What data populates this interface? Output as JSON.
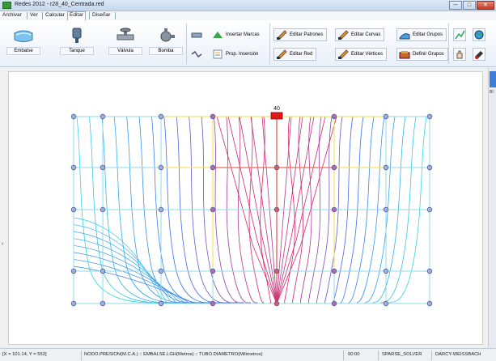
{
  "window": {
    "title": "Redes 2012  -  r28_40_Centrada.red",
    "minimize": "─",
    "maximize": "□",
    "close": "✕"
  },
  "menu": {
    "items": [
      "Archivar",
      "Ver",
      "Calcular",
      "Editar",
      "Diseñar"
    ],
    "active": "Editar"
  },
  "ribbon": {
    "big_buttons": [
      "Embalse",
      "Tanque",
      "Válvula",
      "Bomba"
    ],
    "small_buttons": {
      "insertar_marcas": "Insertar Marcas",
      "prop_insercion": "Prop. Inserción",
      "editar_patrones": "Editar Patrones",
      "editar_red": "Editar Red",
      "editar_curvas": "Editar Curvas",
      "editar_vertices": "Editar Vértices",
      "editar_grupos": "Editar Grupos",
      "definir_grupos": "Definir Grupos"
    }
  },
  "canvas": {
    "marker_label": "40",
    "left_handle": "›",
    "colors": {
      "pipe": "#8fd8e8",
      "yellow_pipe": "#f5e26a",
      "red_pipe": "#e05050",
      "contour_cold": "#33d6e6",
      "contour_mid": "#3b6cf0",
      "contour_hot": "#e22060"
    }
  },
  "right_panel": {
    "tab_label": "BI"
  },
  "status": {
    "coords": "[X = 101.14,  Y = 552]",
    "fields": "NODO.PRESION(M.C.A.) :: EMBALSE.LGH(Metros) :: TUBO.DIAMETRO(Milimetros)",
    "time": "00:00",
    "solver": "SPARSE_SOLVER",
    "method": "DARCY-WEISSBACH"
  }
}
